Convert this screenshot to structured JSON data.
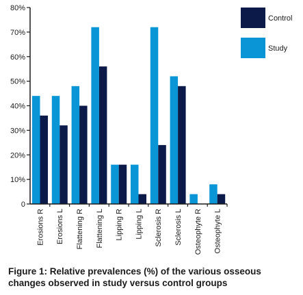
{
  "caption": {
    "prefix": "Figure 1:",
    "text": " Relative prevalences (%) of the various osseous changes observed in study versus control groups"
  },
  "chart_data": {
    "type": "bar",
    "categories": [
      "Erosions R",
      "Erosions L",
      "Flattening R",
      "Flattening L",
      "Lipping R",
      "Lipping L",
      "Sclerosis R",
      "Sclerosis L",
      "Osteophyte R",
      "Osteophyte L"
    ],
    "series": [
      {
        "name": "Study",
        "color": "#0a96d6",
        "values": [
          44,
          44,
          48,
          72,
          16,
          16,
          72,
          52,
          4,
          8
        ]
      },
      {
        "name": "Control",
        "color": "#0c1a4a",
        "values": [
          36,
          32,
          40,
          56,
          16,
          4,
          24,
          48,
          0,
          4
        ]
      }
    ],
    "ylim": [
      0,
      80
    ],
    "yticks": [
      "0",
      "10%",
      "20%",
      "30%",
      "40%",
      "50%",
      "60%",
      "70%",
      "80%"
    ],
    "ytick_values": [
      0,
      10,
      20,
      30,
      40,
      50,
      60,
      70,
      80
    ],
    "legend": [
      {
        "label": "Control",
        "color": "#0c1a4a"
      },
      {
        "label": "Study",
        "color": "#0a96d6"
      }
    ],
    "legend_position": "top-right",
    "grid": false
  }
}
